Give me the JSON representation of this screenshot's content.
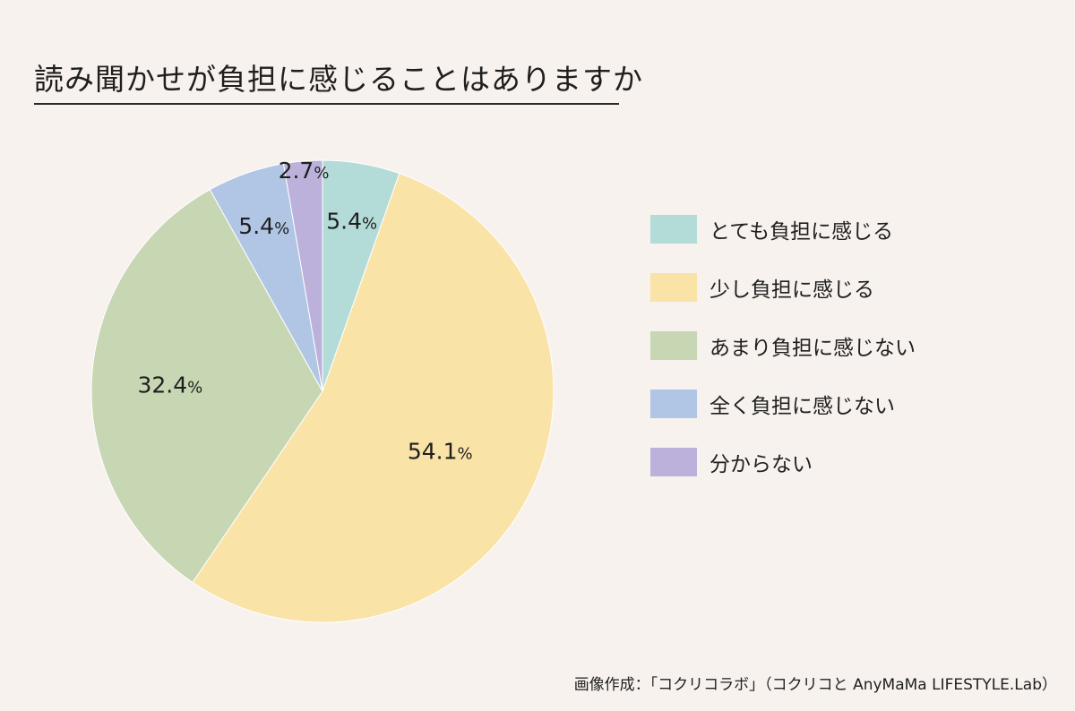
{
  "title": "読み聞かせが負担に感じることはありますか",
  "credit": "画像作成：「コクリコラボ」（コクリコと AnyMaMa LIFESTYLE.Lab）",
  "chart_data": {
    "type": "pie",
    "title": "読み聞かせが負担に感じることはありますか",
    "legend_position": "right",
    "unit": "%",
    "start": "12 o'clock, clockwise",
    "slices": [
      {
        "label": "とても負担に感じる",
        "value": 5.4,
        "value_label": "5.4",
        "color": "#b3dcd8"
      },
      {
        "label": "少し負担に感じる",
        "value": 54.1,
        "value_label": "54.1",
        "color": "#f9e3a7"
      },
      {
        "label": "あまり負担に感じない",
        "value": 32.4,
        "value_label": "32.4",
        "color": "#c7d6b3"
      },
      {
        "label": "全く負担に感じない",
        "value": 5.4,
        "value_label": "5.4",
        "color": "#b1c6e5"
      },
      {
        "label": "分からない",
        "value": 2.7,
        "value_label": "2.7",
        "color": "#bcb1da"
      }
    ]
  }
}
